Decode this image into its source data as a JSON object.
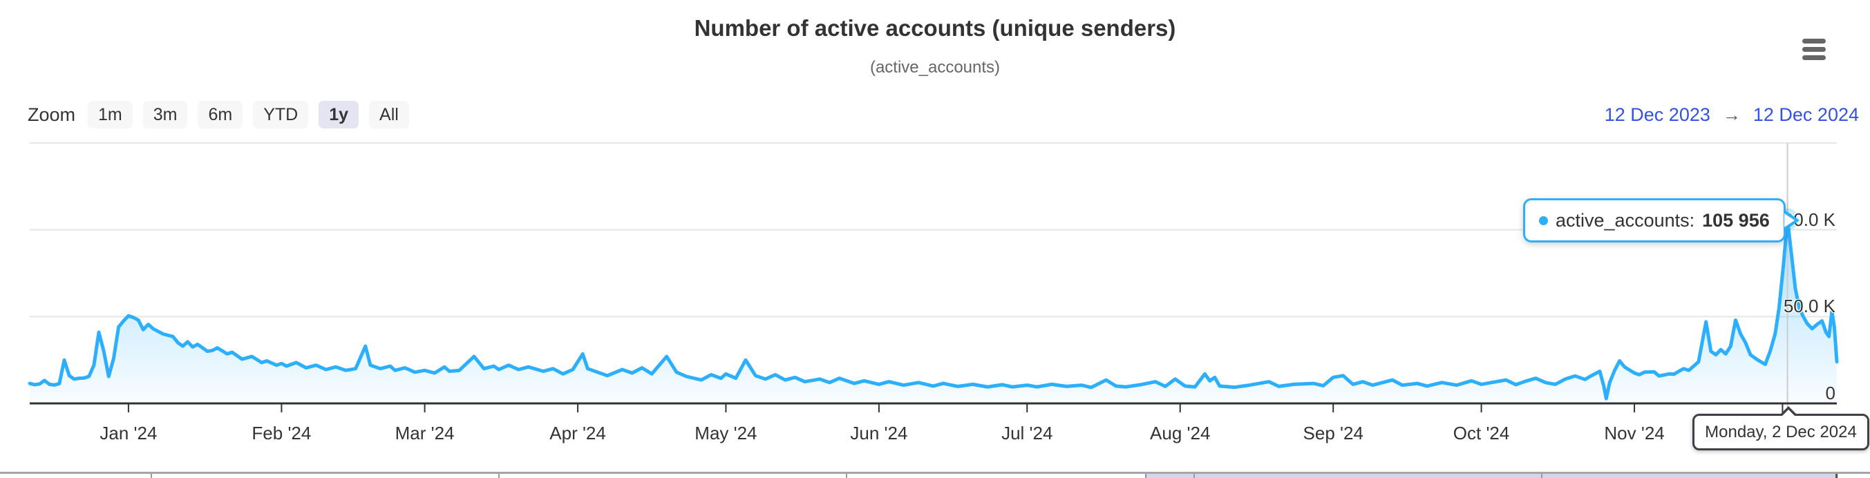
{
  "header": {
    "context_menu_icon": "hamburger-icon"
  },
  "range_selector": {
    "zoom_label": "Zoom",
    "buttons": [
      {
        "label": "1m",
        "selected": false
      },
      {
        "label": "3m",
        "selected": false
      },
      {
        "label": "6m",
        "selected": false
      },
      {
        "label": "YTD",
        "selected": false
      },
      {
        "label": "1y",
        "selected": true
      },
      {
        "label": "All",
        "selected": false
      }
    ],
    "from_date": "12 Dec 2023",
    "arrow": "→",
    "to_date": "12 Dec 2024"
  },
  "tooltip": {
    "series_label": "active_accounts:",
    "value": "105 956"
  },
  "date_tooltip": {
    "text": "Monday, 2 Dec 2024"
  },
  "colors": {
    "series": "#2caffe",
    "grid": "#e6e6e6",
    "axis": "#333333",
    "crosshair": "#cccccc",
    "selected_button_bg": "#e4e4f3",
    "date_input_text": "#3351e6"
  },
  "chart_data": {
    "type": "area",
    "title": "Number of active accounts (unique senders)",
    "subtitle": "(active_accounts)",
    "series_name": "active_accounts",
    "x_range": [
      "12 Dec 2023",
      "12 Dec 2024"
    ],
    "total_days": 366,
    "ylim": [
      0,
      150000
    ],
    "grid": "horizontal",
    "legend": "none",
    "y_ticks": [
      {
        "value": 0,
        "label": "0"
      },
      {
        "value": 50000,
        "label": "50.0 K"
      },
      {
        "value": 100000,
        "label": "100.0 K"
      },
      {
        "value": 150000,
        "label": ""
      }
    ],
    "x_ticks": [
      {
        "day": 20,
        "label": "Jan '24"
      },
      {
        "day": 51,
        "label": "Feb '24"
      },
      {
        "day": 80,
        "label": "Mar '24"
      },
      {
        "day": 111,
        "label": "Apr '24"
      },
      {
        "day": 141,
        "label": "May '24"
      },
      {
        "day": 172,
        "label": "Jun '24"
      },
      {
        "day": 202,
        "label": "Jul '24"
      },
      {
        "day": 233,
        "label": "Aug '24"
      },
      {
        "day": 264,
        "label": "Sep '24"
      },
      {
        "day": 294,
        "label": "Oct '24"
      },
      {
        "day": 325,
        "label": "Nov '24"
      },
      {
        "day": 355,
        "label": ""
      }
    ],
    "hover_point": {
      "day": 356,
      "value": 105956,
      "date": "Monday, 2 Dec 2024"
    },
    "points": [
      [
        0,
        11500
      ],
      [
        1,
        10800
      ],
      [
        2,
        11200
      ],
      [
        3,
        13200
      ],
      [
        4,
        11000
      ],
      [
        5,
        10600
      ],
      [
        6,
        11400
      ],
      [
        7,
        25000
      ],
      [
        8,
        16000
      ],
      [
        9,
        14000
      ],
      [
        10,
        14500
      ],
      [
        11,
        14600
      ],
      [
        12,
        15500
      ],
      [
        13,
        22000
      ],
      [
        14,
        41000
      ],
      [
        15,
        30000
      ],
      [
        16,
        15500
      ],
      [
        17,
        26000
      ],
      [
        18,
        44000
      ],
      [
        19,
        47500
      ],
      [
        20,
        50500
      ],
      [
        21,
        49500
      ],
      [
        22,
        48000
      ],
      [
        23,
        42500
      ],
      [
        24,
        45500
      ],
      [
        25,
        43000
      ],
      [
        26,
        41500
      ],
      [
        27,
        40000
      ],
      [
        29,
        38500
      ],
      [
        30,
        35000
      ],
      [
        31,
        33000
      ],
      [
        32,
        35500
      ],
      [
        33,
        32500
      ],
      [
        34,
        34000
      ],
      [
        36,
        30000
      ],
      [
        37,
        30500
      ],
      [
        38,
        32000
      ],
      [
        40,
        28500
      ],
      [
        41,
        29500
      ],
      [
        43,
        25500
      ],
      [
        45,
        27000
      ],
      [
        47,
        23500
      ],
      [
        48,
        24500
      ],
      [
        50,
        22000
      ],
      [
        51,
        23000
      ],
      [
        52,
        21500
      ],
      [
        54,
        23500
      ],
      [
        56,
        20500
      ],
      [
        58,
        22000
      ],
      [
        60,
        19500
      ],
      [
        62,
        21000
      ],
      [
        64,
        19000
      ],
      [
        66,
        20000
      ],
      [
        68,
        33000
      ],
      [
        69,
        22000
      ],
      [
        71,
        20000
      ],
      [
        73,
        21500
      ],
      [
        74,
        19000
      ],
      [
        76,
        20500
      ],
      [
        78,
        18000
      ],
      [
        80,
        19000
      ],
      [
        82,
        17500
      ],
      [
        84,
        21000
      ],
      [
        85,
        18500
      ],
      [
        87,
        19000
      ],
      [
        90,
        27000
      ],
      [
        92,
        20000
      ],
      [
        94,
        21500
      ],
      [
        95,
        19500
      ],
      [
        97,
        22000
      ],
      [
        99,
        19500
      ],
      [
        101,
        21000
      ],
      [
        104,
        18500
      ],
      [
        106,
        20000
      ],
      [
        108,
        17000
      ],
      [
        110,
        19500
      ],
      [
        112,
        28500
      ],
      [
        113,
        20000
      ],
      [
        115,
        18000
      ],
      [
        117,
        16000
      ],
      [
        120,
        19500
      ],
      [
        122,
        17500
      ],
      [
        124,
        20500
      ],
      [
        126,
        17000
      ],
      [
        129,
        27000
      ],
      [
        131,
        18000
      ],
      [
        133,
        15500
      ],
      [
        136,
        13500
      ],
      [
        138,
        16500
      ],
      [
        140,
        14500
      ],
      [
        141,
        17000
      ],
      [
        143,
        14500
      ],
      [
        145,
        25000
      ],
      [
        147,
        16000
      ],
      [
        149,
        14000
      ],
      [
        151,
        16500
      ],
      [
        153,
        13500
      ],
      [
        155,
        15000
      ],
      [
        157,
        12500
      ],
      [
        160,
        14000
      ],
      [
        162,
        12000
      ],
      [
        164,
        14500
      ],
      [
        167,
        11500
      ],
      [
        169,
        13000
      ],
      [
        172,
        11000
      ],
      [
        174,
        12500
      ],
      [
        177,
        10500
      ],
      [
        180,
        12000
      ],
      [
        183,
        10000
      ],
      [
        185,
        11500
      ],
      [
        188,
        9800
      ],
      [
        191,
        11000
      ],
      [
        194,
        9500
      ],
      [
        197,
        10800
      ],
      [
        199,
        9500
      ],
      [
        202,
        10500
      ],
      [
        204,
        9500
      ],
      [
        207,
        11000
      ],
      [
        210,
        9800
      ],
      [
        213,
        10500
      ],
      [
        215,
        9200
      ],
      [
        218,
        13500
      ],
      [
        220,
        10000
      ],
      [
        222,
        9500
      ],
      [
        225,
        10800
      ],
      [
        228,
        12500
      ],
      [
        230,
        9800
      ],
      [
        232,
        14000
      ],
      [
        234,
        10000
      ],
      [
        236,
        9500
      ],
      [
        238,
        17000
      ],
      [
        239,
        13000
      ],
      [
        240,
        15000
      ],
      [
        241,
        10000
      ],
      [
        244,
        9300
      ],
      [
        247,
        10500
      ],
      [
        251,
        12500
      ],
      [
        253,
        9800
      ],
      [
        256,
        11000
      ],
      [
        260,
        11500
      ],
      [
        262,
        10200
      ],
      [
        264,
        15000
      ],
      [
        266,
        16000
      ],
      [
        268,
        11000
      ],
      [
        270,
        12500
      ],
      [
        272,
        10500
      ],
      [
        276,
        13500
      ],
      [
        278,
        10500
      ],
      [
        281,
        11500
      ],
      [
        283,
        10000
      ],
      [
        286,
        12000
      ],
      [
        289,
        10500
      ],
      [
        292,
        13000
      ],
      [
        294,
        11000
      ],
      [
        296,
        12000
      ],
      [
        299,
        13500
      ],
      [
        301,
        10800
      ],
      [
        303,
        12800
      ],
      [
        305,
        14500
      ],
      [
        307,
        12000
      ],
      [
        309,
        11000
      ],
      [
        311,
        14000
      ],
      [
        313,
        15800
      ],
      [
        315,
        13800
      ],
      [
        316,
        15500
      ],
      [
        318,
        18500
      ],
      [
        318.8,
        10000
      ],
      [
        319.3,
        2800
      ],
      [
        320,
        12000
      ],
      [
        321,
        19000
      ],
      [
        322,
        24500
      ],
      [
        323,
        21000
      ],
      [
        325,
        17500
      ],
      [
        326,
        16500
      ],
      [
        327,
        18000
      ],
      [
        329,
        18200
      ],
      [
        330,
        15800
      ],
      [
        332,
        17000
      ],
      [
        333,
        16800
      ],
      [
        334,
        18500
      ],
      [
        335,
        20000
      ],
      [
        336,
        19000
      ],
      [
        338,
        24000
      ],
      [
        339.5,
        47000
      ],
      [
        340.5,
        30000
      ],
      [
        341.5,
        28000
      ],
      [
        342.5,
        31000
      ],
      [
        343.5,
        28500
      ],
      [
        344.5,
        33000
      ],
      [
        345.5,
        48000
      ],
      [
        346.5,
        40000
      ],
      [
        347.5,
        35000
      ],
      [
        348.5,
        28000
      ],
      [
        350,
        25000
      ],
      [
        351.5,
        22500
      ],
      [
        352.5,
        30000
      ],
      [
        353.5,
        40000
      ],
      [
        354.3,
        55000
      ],
      [
        355.2,
        80000
      ],
      [
        356,
        105956
      ],
      [
        356.8,
        86000
      ],
      [
        357.6,
        66000
      ],
      [
        358.4,
        55000
      ],
      [
        359.2,
        50000
      ],
      [
        360,
        46000
      ],
      [
        361,
        43000
      ],
      [
        362,
        45500
      ],
      [
        363,
        47500
      ],
      [
        363.8,
        41000
      ],
      [
        364.4,
        38500
      ],
      [
        365,
        53000
      ],
      [
        365.5,
        44000
      ],
      [
        366,
        24000
      ]
    ]
  }
}
